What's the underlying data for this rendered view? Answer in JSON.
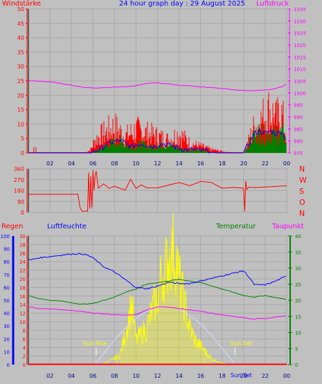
{
  "header": {
    "left": "Windstärke",
    "center": "24 hour graph day : 29 August 2025",
    "right": "Luftdruck"
  },
  "bottom_header": {
    "regen": "Regen",
    "luftfeuchte": "Luftfeuchte",
    "temperatur": "Temperatur",
    "taupunkt": "Taupunkt"
  },
  "direction_labels": [
    "N",
    "W",
    "S",
    "O",
    "N"
  ],
  "sun": {
    "rise_label": "Sun Rise",
    "set_label": "Sun Set",
    "bottom_label": "Sun Set"
  },
  "colors": {
    "wind": "#ff0000",
    "gust": "#0000ff",
    "wind_bar": "#008000",
    "pressure": "#ff00ff",
    "humidity": "#0000ff",
    "temperature": "#008000",
    "dewpoint": "#ff00ff",
    "radiation": "#ffff00",
    "rain": "#ff0000",
    "axis_blue": "#0000ff"
  },
  "chart_data": [
    {
      "type": "bar",
      "title": "24 hour graph day : 29 August 2025",
      "ylabel": "Windstärke",
      "y2label": "Luftdruck",
      "x_ticks": [
        "02",
        "04",
        "06",
        "08",
        "10",
        "12",
        "14",
        "16",
        "18",
        "20",
        "22",
        "00"
      ],
      "y_ticks": [
        0,
        5,
        10,
        15,
        20,
        25,
        30,
        35,
        40,
        45,
        50
      ],
      "y2_ticks": [
        975,
        980,
        985,
        990,
        995,
        1000,
        1005,
        1010,
        1015,
        1020,
        1025,
        1030,
        1035
      ],
      "ylim": [
        0,
        50
      ],
      "y2lim": [
        975,
        1035
      ],
      "series": [
        {
          "x": [
            0,
            1,
            2,
            3,
            4,
            5,
            6,
            7,
            8,
            9,
            10,
            11,
            12,
            13,
            14,
            15,
            16,
            17,
            18,
            19,
            20,
            21,
            22,
            23,
            24
          ],
          "values": [
            1005,
            1005,
            1004.6,
            1004,
            1003.2,
            1002.4,
            1002,
            1002.2,
            1002.4,
            1002.6,
            1003,
            1004,
            1004.2,
            1003.8,
            1003.2,
            1003,
            1002.6,
            1002.2,
            1001.8,
            1001.4,
            1001,
            1001,
            1001.2,
            1001.8,
            1003.5
          ]
        },
        {
          "x": [
            0,
            3.5,
            5.2,
            5.8,
            6.2,
            7,
            8,
            9,
            10,
            11,
            12,
            13,
            14,
            15,
            16,
            17,
            18,
            19,
            20,
            20.5,
            21,
            21.5,
            22,
            22.5,
            23,
            23.5,
            24
          ],
          "values": [
            0,
            0,
            0,
            1,
            4,
            6,
            8,
            5,
            7,
            6,
            5,
            4,
            6,
            3,
            2,
            1,
            0.5,
            0,
            0,
            4,
            8,
            9,
            12,
            13,
            10,
            12,
            6
          ]
        },
        {
          "x": [
            0,
            5.8,
            6.5,
            7.5,
            8.5,
            9.5,
            10.5,
            11.5,
            12.5,
            13.5,
            14.5,
            15.5,
            16.5,
            17.5,
            18.5,
            20,
            20.5,
            21,
            21.5,
            22,
            22.5,
            23,
            23.5,
            24
          ],
          "values": [
            0,
            0,
            1,
            3,
            4,
            2,
            3,
            2,
            3,
            2,
            1,
            1,
            0.5,
            0,
            0,
            0,
            3,
            6,
            7,
            6,
            7,
            6,
            7,
            4
          ]
        }
      ]
    },
    {
      "type": "line",
      "ylabel": "",
      "y_ticks": [
        0,
        90,
        180,
        270,
        360
      ],
      "ylim": [
        0,
        360
      ],
      "series": [
        {
          "x": [
            0,
            4.6,
            4.8,
            5,
            5.5,
            5.6,
            5.7,
            5.8,
            5.9,
            6,
            6.1,
            6.2,
            6.3,
            6.5,
            7,
            7.5,
            8,
            8.5,
            9,
            9.5,
            10,
            10.5,
            11,
            12,
            13,
            14,
            15,
            16,
            17,
            18,
            19,
            20,
            20.1,
            20.2,
            20.3,
            20.5,
            21,
            22,
            23,
            24
          ],
          "values": [
            150,
            150,
            40,
            10,
            10,
            330,
            30,
            300,
            40,
            350,
            180,
            310,
            340,
            200,
            230,
            200,
            210,
            200,
            190,
            280,
            200,
            220,
            200,
            210,
            220,
            250,
            230,
            260,
            240,
            200,
            200,
            200,
            10,
            260,
            190,
            210,
            205,
            210,
            215,
            220
          ]
        }
      ]
    },
    {
      "type": "line",
      "ylabel": "Luftfeuchte",
      "x_ticks": [
        "02",
        "04",
        "06",
        "08",
        "10",
        "12",
        "14",
        "16",
        "18",
        "20",
        "22",
        "00"
      ],
      "y_ticks": [
        0,
        10,
        20,
        30,
        40,
        50,
        60,
        70,
        80,
        90,
        100
      ],
      "y_ticks_rain": [
        0,
        2,
        4,
        6,
        8,
        10,
        12,
        14,
        16,
        18,
        20,
        22,
        24,
        26,
        28,
        30
      ],
      "y_ticks_temp": [
        0,
        5,
        10,
        15,
        20,
        25,
        30,
        35,
        40
      ],
      "ylim": [
        0,
        100
      ],
      "series": [
        {
          "x": [
            0,
            1,
            2,
            3,
            4,
            5,
            5.5,
            6,
            7,
            8,
            9,
            10,
            11,
            12,
            13,
            14,
            15,
            16,
            17,
            18,
            19,
            20,
            20.5,
            21,
            22,
            23,
            24
          ],
          "values": [
            81,
            83,
            84,
            85,
            86,
            86,
            85,
            83,
            76,
            72,
            66,
            60,
            59,
            61,
            64,
            63,
            63,
            65,
            67,
            69,
            71,
            73,
            68,
            62,
            62,
            65,
            69
          ]
        },
        {
          "x": [
            0,
            1,
            2,
            3,
            4,
            5,
            6,
            7,
            8,
            9,
            10,
            11,
            12,
            13,
            14,
            15,
            16,
            17,
            18,
            19,
            20,
            21,
            22,
            23,
            24
          ],
          "values": [
            21.5,
            20.5,
            20,
            19.8,
            19.2,
            18.8,
            19,
            20,
            21,
            22.5,
            23.5,
            25,
            25.5,
            26,
            26.5,
            26,
            25.5,
            24.5,
            23.5,
            22.5,
            21.5,
            21,
            21.5,
            20.8,
            20.3
          ]
        },
        {
          "x": [
            0,
            1,
            2,
            3,
            4,
            5,
            6,
            7,
            8,
            9,
            10,
            11,
            12,
            13,
            14,
            15,
            16,
            17,
            18,
            19,
            20,
            21,
            22,
            23,
            24
          ],
          "values": [
            18,
            17.5,
            17.3,
            17.1,
            16.8,
            16.6,
            16,
            15.8,
            15.5,
            15.4,
            15.5,
            17,
            18,
            17.8,
            17.4,
            17,
            16.6,
            16,
            15.5,
            15,
            14.6,
            14.2,
            14.3,
            14.8,
            15.2
          ]
        },
        {
          "x": [
            0,
            5,
            6.8,
            7.2,
            8,
            8.5,
            9,
            9.3,
            9.6,
            9.8,
            10,
            10.5,
            11,
            11.5,
            12,
            12.3,
            12.5,
            12.8,
            13,
            13.3,
            13.5,
            13.8,
            14,
            14.5,
            15,
            15.5,
            16,
            16.5,
            17,
            17.5,
            18,
            18.5,
            19,
            24
          ],
          "values": [
            0,
            0,
            0,
            0.5,
            2,
            3,
            10,
            15,
            20,
            14,
            8,
            10,
            12,
            18,
            22,
            28,
            30,
            32,
            35,
            36,
            38,
            34,
            28,
            20,
            12,
            8,
            6,
            4,
            2,
            1,
            0.5,
            0,
            0,
            0
          ]
        },
        {
          "x": [
            0,
            24
          ],
          "values": [
            0,
            0
          ]
        }
      ]
    }
  ]
}
